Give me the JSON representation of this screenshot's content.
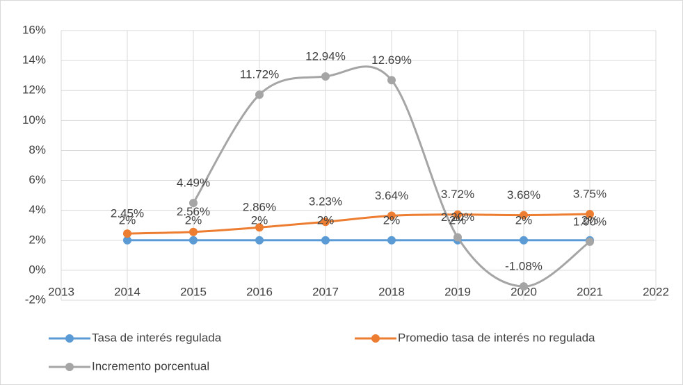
{
  "chart_data": {
    "type": "line",
    "x": [
      2014,
      2015,
      2016,
      2017,
      2018,
      2019,
      2020,
      2021
    ],
    "series": [
      {
        "name": "Tasa de interés regulada",
        "color": "#5b9bd5",
        "values": [
          2,
          2,
          2,
          2,
          2,
          2,
          2,
          2
        ],
        "value_labels": [
          "2%",
          "2%",
          "2%",
          "2%",
          "2%",
          "2%",
          "2%",
          "2%"
        ]
      },
      {
        "name": "Promedio tasa de interés no regulada",
        "color": "#ed7d31",
        "values": [
          2.45,
          2.56,
          2.86,
          3.23,
          3.64,
          3.72,
          3.68,
          3.75
        ],
        "value_labels": [
          "2.45%",
          "2.56%",
          "2.86%",
          "3.23%",
          "3.64%",
          "3.72%",
          "3.68%",
          "3.75%"
        ]
      },
      {
        "name": "Incremento porcentual",
        "color": "#a5a5a5",
        "values": [
          null,
          4.49,
          11.72,
          12.94,
          12.69,
          2.2,
          -1.08,
          1.9
        ],
        "value_labels": [
          null,
          "4.49%",
          "11.72%",
          "12.94%",
          "12.69%",
          "2.20%",
          "-1.08%",
          "1.90%"
        ]
      }
    ],
    "xlim": [
      2013,
      2022
    ],
    "xticks": [
      2013,
      2014,
      2015,
      2016,
      2017,
      2018,
      2019,
      2020,
      2021,
      2022
    ],
    "ylim": [
      -2,
      16
    ],
    "yticks": [
      {
        "value": -2,
        "label": "-2%"
      },
      {
        "value": 0,
        "label": "0%"
      },
      {
        "value": 2,
        "label": "2%"
      },
      {
        "value": 4,
        "label": "4%"
      },
      {
        "value": 6,
        "label": "6%"
      },
      {
        "value": 8,
        "label": "8%"
      },
      {
        "value": 10,
        "label": "10%"
      },
      {
        "value": 12,
        "label": "12%"
      },
      {
        "value": 14,
        "label": "14%"
      },
      {
        "value": 16,
        "label": "16%"
      }
    ],
    "grid": true,
    "smooth": true,
    "legend": "bottom"
  }
}
